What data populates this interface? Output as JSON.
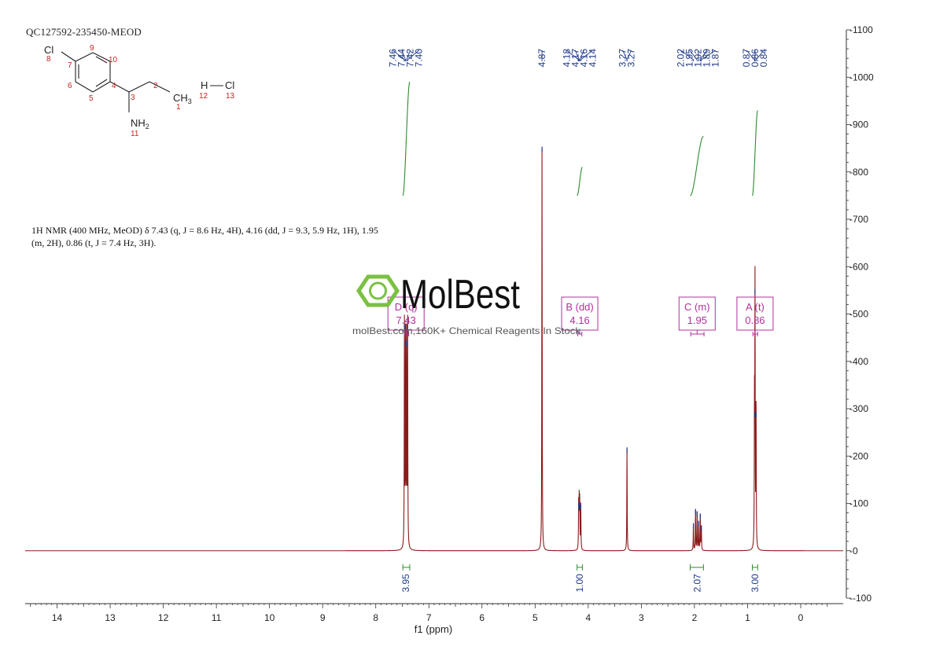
{
  "sample_id": "QC127592-235450-MEOD",
  "nmr_description": {
    "line1": "1H NMR (400 MHz, MeOD) δ 7.43 (q, J = 8.6 Hz, 4H), 4.16 (dd, J = 9.3, 5.9 Hz, 1H), 1.95",
    "line2": "(m, 2H), 0.86 (t, J = 7.4 Hz, 3H)."
  },
  "structure": {
    "atoms": [
      {
        "label": "Cl",
        "num": "8"
      },
      {
        "label": "",
        "num": "9"
      },
      {
        "label": "",
        "num": "10"
      },
      {
        "label": "",
        "num": "7"
      },
      {
        "label": "",
        "num": "6"
      },
      {
        "label": "",
        "num": "4"
      },
      {
        "label": "",
        "num": "5"
      },
      {
        "label": "",
        "num": "3"
      },
      {
        "label": "",
        "num": "2"
      },
      {
        "label": "CH3",
        "num": "1"
      },
      {
        "label": "NH2",
        "num": "11"
      },
      {
        "label": "H",
        "num": "12"
      },
      {
        "label": "Cl",
        "num": "13"
      }
    ]
  },
  "watermark": {
    "brand": "MolBest",
    "tagline": "molBest.com,160K+ Chemical Reagents In Stock"
  },
  "colors": {
    "spectrum": "#8b1a1a",
    "integral": "#2e8b2e",
    "peak_label": "#1f3a8a",
    "annotation": "#b0309a",
    "atom_number": "#cc2222",
    "watermark_green": "#7ac142"
  },
  "chart_data": {
    "type": "line",
    "xlabel": "f1 (ppm)",
    "xlim": [
      14.6,
      -0.8
    ],
    "ylim": [
      -100,
      1100
    ],
    "x_ticks": [
      14,
      13,
      12,
      11,
      10,
      9,
      8,
      7,
      6,
      5,
      4,
      3,
      2,
      1,
      0
    ],
    "y_ticks": [
      -100,
      0,
      100,
      200,
      300,
      400,
      500,
      600,
      700,
      800,
      900,
      1000,
      1100
    ],
    "peaks": [
      {
        "ppm": 7.46,
        "height": 475
      },
      {
        "ppm": 7.44,
        "height": 440
      },
      {
        "ppm": 7.42,
        "height": 440
      },
      {
        "ppm": 7.4,
        "height": 475
      },
      {
        "ppm": 4.87,
        "height": 850
      },
      {
        "ppm": 4.18,
        "height": 95
      },
      {
        "ppm": 4.17,
        "height": 100
      },
      {
        "ppm": 4.16,
        "height": 100
      },
      {
        "ppm": 4.14,
        "height": 95
      },
      {
        "ppm": 3.27,
        "height": 215
      },
      {
        "ppm": 2.02,
        "height": 55
      },
      {
        "ppm": 1.98,
        "height": 85
      },
      {
        "ppm": 1.95,
        "height": 80
      },
      {
        "ppm": 1.92,
        "height": 60
      },
      {
        "ppm": 1.89,
        "height": 75
      },
      {
        "ppm": 1.87,
        "height": 50
      },
      {
        "ppm": 0.87,
        "height": 290
      },
      {
        "ppm": 0.86,
        "height": 550
      },
      {
        "ppm": 0.84,
        "height": 290
      }
    ],
    "peak_labels": [
      {
        "group": [
          "7.46",
          "7.44",
          "7.42",
          "7.40"
        ],
        "ppms": [
          7.46,
          7.44,
          7.42,
          7.4
        ]
      },
      {
        "group": [
          "4.87"
        ],
        "ppms": [
          4.87
        ]
      },
      {
        "group": [
          "4.18",
          "4.17",
          "4.16",
          "4.14"
        ],
        "ppms": [
          4.18,
          4.17,
          4.16,
          4.14
        ]
      },
      {
        "group": [
          "3.27",
          "3.27"
        ],
        "ppms": [
          3.27,
          3.27
        ]
      },
      {
        "group": [
          "2.02",
          "1.95",
          "1.92",
          "1.89",
          "1.87"
        ],
        "ppms": [
          2.02,
          1.95,
          1.92,
          1.89,
          1.87
        ]
      },
      {
        "group": [
          "0.87",
          "0.86",
          "0.84"
        ],
        "ppms": [
          0.87,
          0.86,
          0.84
        ]
      }
    ],
    "multiplets": [
      {
        "letter": "D (q)",
        "shift": "7.43",
        "ppm": 7.43,
        "range": [
          7.46,
          7.38
        ]
      },
      {
        "letter": "B (dd)",
        "shift": "4.16",
        "ppm": 4.16,
        "range": [
          4.2,
          4.12
        ]
      },
      {
        "letter": "C (m)",
        "shift": "1.95",
        "ppm": 1.95,
        "range": [
          2.07,
          1.82
        ]
      },
      {
        "letter": "A (t)",
        "shift": "0.86",
        "ppm": 0.86,
        "range": [
          0.9,
          0.81
        ]
      }
    ],
    "integrals": [
      {
        "value": "3.95",
        "ppm": 7.43,
        "from": 7.49,
        "to": 7.36,
        "y_start": 750,
        "y_end": 990
      },
      {
        "value": "1.00",
        "ppm": 4.16,
        "from": 4.21,
        "to": 4.11,
        "y_start": 750,
        "y_end": 810
      },
      {
        "value": "2.07",
        "ppm": 1.95,
        "from": 2.08,
        "to": 1.83,
        "y_start": 750,
        "y_end": 875
      },
      {
        "value": "3.00",
        "ppm": 0.86,
        "from": 0.91,
        "to": 0.81,
        "y_start": 750,
        "y_end": 930
      }
    ]
  }
}
